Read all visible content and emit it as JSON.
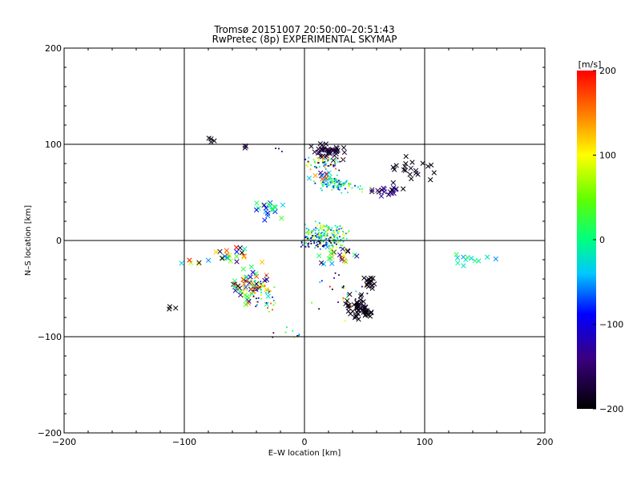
{
  "chart_data": {
    "type": "scatter",
    "title": "Tromsø 20151007 20:50:00–20:51:43",
    "subtitle": "RwPretec (8p) EXPERIMENTAL SKYMAP",
    "xlabel": "E–W location [km]",
    "ylabel": "N–S location [km]",
    "xlim": [
      -200,
      200
    ],
    "ylim": [
      -200,
      200
    ],
    "x_ticks": [
      -200,
      -100,
      0,
      100,
      200
    ],
    "y_ticks": [
      -200,
      -100,
      0,
      100,
      200
    ],
    "grid": true,
    "colorbar": {
      "label": "[m/s]",
      "range": [
        -200,
        200
      ],
      "ticks": [
        -200,
        -100,
        0,
        100,
        200
      ],
      "colormap": "rainbow-black-to-red"
    },
    "clusters": [
      {
        "center": [
          -78,
          102
        ],
        "spread": [
          3,
          4
        ],
        "count": 4,
        "v_range": [
          -200,
          -180
        ],
        "marker": "x"
      },
      {
        "center": [
          -50,
          98
        ],
        "spread": [
          3,
          2
        ],
        "count": 3,
        "v_range": [
          -200,
          -160
        ],
        "marker": "x"
      },
      {
        "center": [
          -20,
          96
        ],
        "spread": [
          4,
          3
        ],
        "count": 3,
        "v_range": [
          -200,
          -120
        ],
        "marker": "dot"
      },
      {
        "center": [
          20,
          92
        ],
        "spread": [
          12,
          8
        ],
        "count": 40,
        "v_range": [
          -200,
          -160
        ],
        "marker": "x"
      },
      {
        "center": [
          18,
          80
        ],
        "spread": [
          14,
          6
        ],
        "count": 60,
        "v_range": [
          -200,
          200
        ],
        "marker": "dot"
      },
      {
        "center": [
          25,
          60
        ],
        "spread": [
          12,
          6
        ],
        "count": 90,
        "v_range": [
          -120,
          60
        ],
        "marker": "dot"
      },
      {
        "center": [
          15,
          66
        ],
        "spread": [
          8,
          5
        ],
        "count": 12,
        "v_range": [
          -150,
          200
        ],
        "marker": "x"
      },
      {
        "center": [
          90,
          75
        ],
        "spread": [
          18,
          10
        ],
        "count": 20,
        "v_range": [
          -200,
          -180
        ],
        "marker": "x"
      },
      {
        "center": [
          70,
          52
        ],
        "spread": [
          14,
          6
        ],
        "count": 20,
        "v_range": [
          -200,
          -100
        ],
        "marker": "x"
      },
      {
        "center": [
          40,
          55
        ],
        "spread": [
          12,
          6
        ],
        "count": 15,
        "v_range": [
          -100,
          100
        ],
        "marker": "dot"
      },
      {
        "center": [
          -30,
          35
        ],
        "spread": [
          12,
          12
        ],
        "count": 20,
        "v_range": [
          -130,
          60
        ],
        "marker": "x"
      },
      {
        "center": [
          15,
          5
        ],
        "spread": [
          18,
          12
        ],
        "count": 200,
        "v_range": [
          -80,
          120
        ],
        "marker": "dot"
      },
      {
        "center": [
          10,
          -3
        ],
        "spread": [
          14,
          6
        ],
        "count": 40,
        "v_range": [
          -200,
          -60
        ],
        "marker": "dot"
      },
      {
        "center": [
          30,
          -15
        ],
        "spread": [
          20,
          10
        ],
        "count": 25,
        "v_range": [
          -200,
          200
        ],
        "marker": "x"
      },
      {
        "center": [
          -60,
          -15
        ],
        "spread": [
          10,
          6
        ],
        "count": 20,
        "v_range": [
          -200,
          200
        ],
        "marker": "x"
      },
      {
        "center": [
          -45,
          -45
        ],
        "spread": [
          14,
          16
        ],
        "count": 60,
        "v_range": [
          -200,
          200
        ],
        "marker": "x"
      },
      {
        "center": [
          -35,
          -55
        ],
        "spread": [
          12,
          14
        ],
        "count": 50,
        "v_range": [
          -200,
          200
        ],
        "marker": "dot"
      },
      {
        "center": [
          45,
          -70
        ],
        "spread": [
          10,
          12
        ],
        "count": 50,
        "v_range": [
          -200,
          -180
        ],
        "marker": "x"
      },
      {
        "center": [
          55,
          -45
        ],
        "spread": [
          4,
          6
        ],
        "count": 15,
        "v_range": [
          -200,
          -180
        ],
        "marker": "x"
      },
      {
        "center": [
          30,
          -55
        ],
        "spread": [
          20,
          20
        ],
        "count": 25,
        "v_range": [
          -200,
          200
        ],
        "marker": "dot"
      },
      {
        "center": [
          140,
          -20
        ],
        "spread": [
          20,
          8
        ],
        "count": 12,
        "v_range": [
          -60,
          40
        ],
        "marker": "x"
      },
      {
        "center": [
          -110,
          -70
        ],
        "spread": [
          5,
          4
        ],
        "count": 3,
        "v_range": [
          -200,
          -190
        ],
        "marker": "x"
      },
      {
        "center": [
          -90,
          -20
        ],
        "spread": [
          12,
          6
        ],
        "count": 6,
        "v_range": [
          -200,
          200
        ],
        "marker": "x"
      },
      {
        "center": [
          -15,
          -95
        ],
        "spread": [
          15,
          8
        ],
        "count": 10,
        "v_range": [
          -200,
          200
        ],
        "marker": "dot"
      }
    ]
  }
}
